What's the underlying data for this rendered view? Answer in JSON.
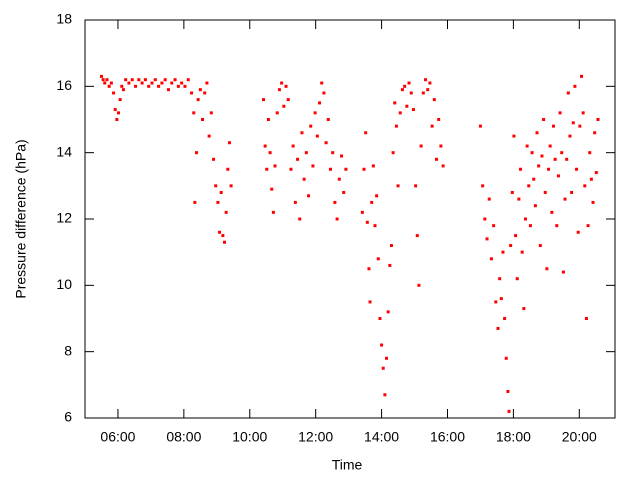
{
  "chart_data": {
    "type": "scatter",
    "xlabel": "Time",
    "ylabel": "Pressure difference (hPa)",
    "xlim": [
      300,
      1265
    ],
    "ylim": [
      6,
      18
    ],
    "xticks": [
      {
        "value": 360,
        "label": "06:00"
      },
      {
        "value": 480,
        "label": "08:00"
      },
      {
        "value": 600,
        "label": "10:00"
      },
      {
        "value": 720,
        "label": "12:00"
      },
      {
        "value": 840,
        "label": "14:00"
      },
      {
        "value": 960,
        "label": "16:00"
      },
      {
        "value": 1080,
        "label": "18:00"
      },
      {
        "value": 1200,
        "label": "20:00"
      }
    ],
    "yticks": [
      6,
      8,
      10,
      12,
      14,
      16,
      18
    ],
    "grid": false,
    "series": [
      {
        "color": "#ff0000",
        "x": [
          330,
          333,
          336,
          340,
          344,
          348,
          352,
          355,
          358,
          361,
          364,
          367,
          370,
          374,
          380,
          386,
          392,
          398,
          404,
          410,
          416,
          422,
          428,
          434,
          440,
          446,
          452,
          458,
          464,
          470,
          476,
          482,
          488,
          494,
          498,
          500,
          503,
          506,
          510,
          514,
          518,
          522,
          526,
          530,
          534,
          538,
          542,
          545,
          548,
          551,
          554,
          557,
          560,
          563,
          566,
          625,
          628,
          631,
          634,
          637,
          640,
          643,
          646,
          650,
          654,
          658,
          662,
          666,
          670,
          675,
          679,
          683,
          687,
          691,
          695,
          699,
          703,
          707,
          711,
          715,
          719,
          723,
          727,
          731,
          735,
          739,
          743,
          747,
          751,
          755,
          759,
          763,
          767,
          771,
          775,
          805,
          808,
          811,
          814,
          817,
          819,
          822,
          825,
          828,
          831,
          834,
          837,
          840,
          843,
          846,
          849,
          852,
          855,
          858,
          861,
          864,
          867,
          870,
          874,
          878,
          882,
          886,
          890,
          894,
          898,
          902,
          905,
          908,
          912,
          916,
          920,
          924,
          928,
          932,
          936,
          940,
          944,
          948,
          952,
          1020,
          1024,
          1028,
          1032,
          1036,
          1040,
          1044,
          1048,
          1052,
          1055,
          1058,
          1061,
          1064,
          1067,
          1070,
          1072,
          1075,
          1078,
          1081,
          1084,
          1087,
          1090,
          1093,
          1096,
          1099,
          1102,
          1105,
          1108,
          1111,
          1114,
          1117,
          1120,
          1123,
          1126,
          1129,
          1132,
          1135,
          1138,
          1141,
          1144,
          1147,
          1150,
          1153,
          1156,
          1159,
          1162,
          1165,
          1168,
          1171,
          1174,
          1177,
          1180,
          1183,
          1186,
          1189,
          1192,
          1195,
          1198,
          1201,
          1204,
          1207,
          1210,
          1213,
          1216,
          1219,
          1222,
          1225,
          1228,
          1231,
          1234
        ],
        "values": [
          16.3,
          16.2,
          16.1,
          16.2,
          16.0,
          16.1,
          15.8,
          15.3,
          15.0,
          15.2,
          15.6,
          16.0,
          15.9,
          16.2,
          16.1,
          16.2,
          16.0,
          16.2,
          16.1,
          16.2,
          16.0,
          16.1,
          16.2,
          16.0,
          16.1,
          16.2,
          15.9,
          16.1,
          16.2,
          16.0,
          16.1,
          16.0,
          16.2,
          15.8,
          15.2,
          12.5,
          14.0,
          15.6,
          15.9,
          15.0,
          15.8,
          16.1,
          14.5,
          15.2,
          13.8,
          13.0,
          12.5,
          11.6,
          12.8,
          11.5,
          11.3,
          12.2,
          13.5,
          14.3,
          13.0,
          15.6,
          14.2,
          13.5,
          15.0,
          14.0,
          12.9,
          12.2,
          13.6,
          15.2,
          15.9,
          16.1,
          15.4,
          16.0,
          15.6,
          13.5,
          14.2,
          12.5,
          13.8,
          12.0,
          14.6,
          13.2,
          14.0,
          12.7,
          14.8,
          13.6,
          15.2,
          14.5,
          15.5,
          16.1,
          15.8,
          14.3,
          15.0,
          13.5,
          14.0,
          12.5,
          12.0,
          13.2,
          13.9,
          12.8,
          13.5,
          12.2,
          13.5,
          14.6,
          11.9,
          10.5,
          9.5,
          12.5,
          13.6,
          11.8,
          12.7,
          10.8,
          9.0,
          8.2,
          7.5,
          6.7,
          7.8,
          9.2,
          10.6,
          11.2,
          14.0,
          15.5,
          14.8,
          13.0,
          15.2,
          15.9,
          16.0,
          15.4,
          16.1,
          15.8,
          15.3,
          13.0,
          11.5,
          10.0,
          14.2,
          15.8,
          16.2,
          15.9,
          16.1,
          14.8,
          15.6,
          13.8,
          15.0,
          14.2,
          13.6,
          14.8,
          13.0,
          12.0,
          11.4,
          12.6,
          10.8,
          11.8,
          9.5,
          8.7,
          10.2,
          9.6,
          11.0,
          9.0,
          7.8,
          6.8,
          6.2,
          11.2,
          12.8,
          14.5,
          11.5,
          10.2,
          12.6,
          13.5,
          11.0,
          9.3,
          12.0,
          14.2,
          13.0,
          11.8,
          14.0,
          13.2,
          12.4,
          14.6,
          13.6,
          11.2,
          13.9,
          15.0,
          12.8,
          10.5,
          13.5,
          14.2,
          12.2,
          14.8,
          13.8,
          11.8,
          13.3,
          15.2,
          14.0,
          10.4,
          12.6,
          13.8,
          15.8,
          14.5,
          12.8,
          14.9,
          16.0,
          13.5,
          11.6,
          14.8,
          16.3,
          15.2,
          13.0,
          9.0,
          11.8,
          14.0,
          13.2,
          12.5,
          14.6,
          13.4,
          15.0
        ]
      }
    ]
  }
}
